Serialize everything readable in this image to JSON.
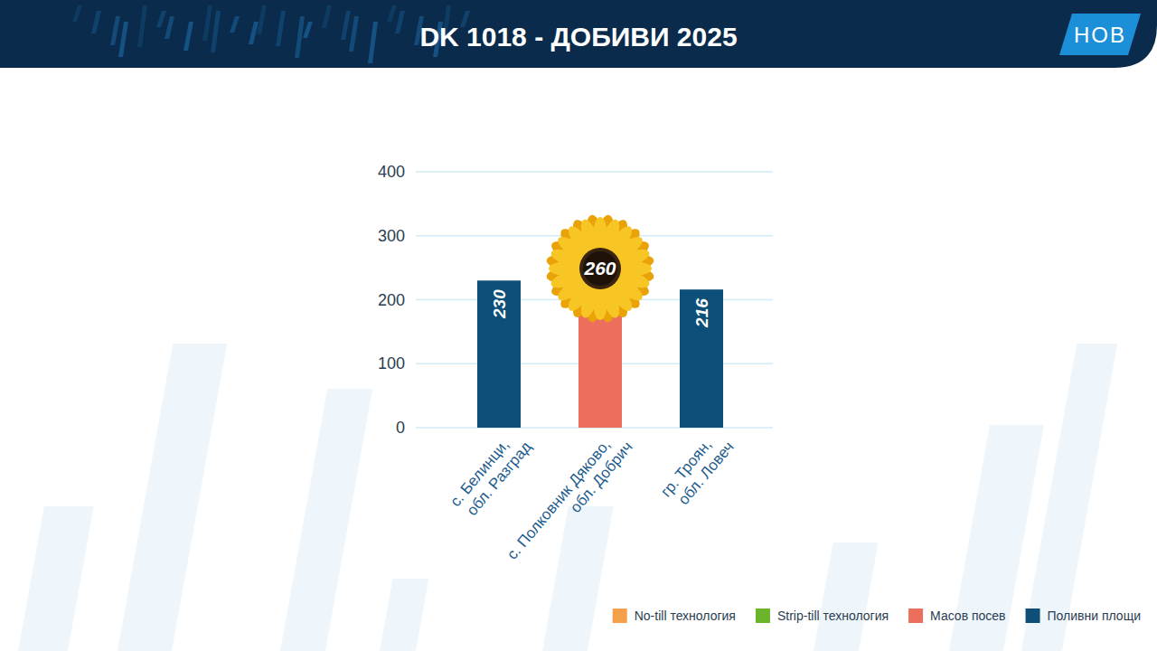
{
  "chart_data": {
    "type": "bar",
    "title": "DK 1018 - ДОБИВИ 2025",
    "categories": [
      "с. Белинци, обл. Разград",
      "с. Полковник Дяково, обл. Добрич",
      "гр. Троян, обл. Ловеч"
    ],
    "series": [
      {
        "name": "No-till технология",
        "color": "#f4a04a",
        "values": [
          null,
          null,
          null
        ]
      },
      {
        "name": "Strip-till технология",
        "color": "#6bb42c",
        "values": [
          null,
          null,
          null
        ]
      },
      {
        "name": "Масов посев",
        "color": "#ec6e5c",
        "values": [
          null,
          260,
          null
        ]
      },
      {
        "name": "Поливни площи",
        "color": "#0d4f78",
        "values": [
          230,
          null,
          216
        ]
      }
    ],
    "stacked": true,
    "ylim": [
      0,
      400
    ],
    "yticks": [
      0,
      100,
      200,
      300,
      400
    ],
    "grid": true,
    "data_labels": true,
    "legend": "bottom-right"
  },
  "logo": "НОВ"
}
